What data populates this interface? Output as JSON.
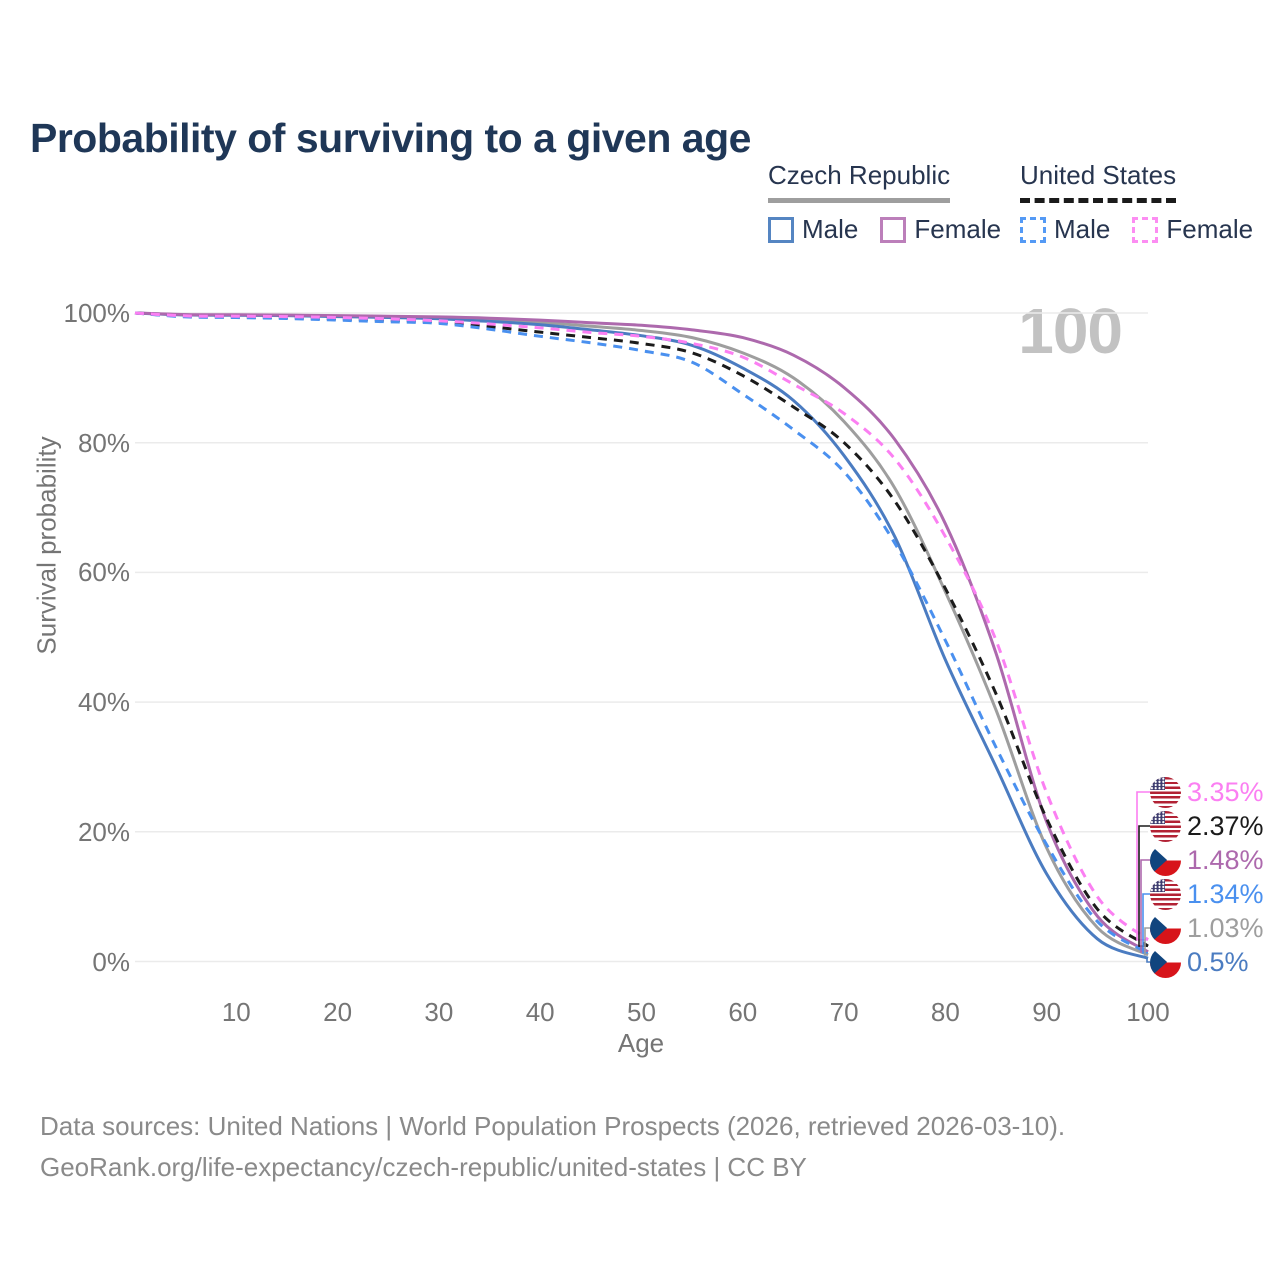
{
  "title": "Probability of surviving to a given age",
  "watermark": "100",
  "legend": {
    "groups": [
      {
        "label": "Czech Republic",
        "line_style": "solid",
        "underline_color": "#9e9e9e",
        "items": [
          {
            "label": "Male",
            "series": "cz-male",
            "color": "#5585c2"
          },
          {
            "label": "Female",
            "series": "cz-female",
            "color": "#bc7fba"
          }
        ]
      },
      {
        "label": "United States",
        "line_style": "dashed",
        "underline_color": "#1b1b1b",
        "items": [
          {
            "label": "Male",
            "series": "us-male",
            "color": "#549af5"
          },
          {
            "label": "Female",
            "series": "us-female",
            "color": "#fc8df2"
          }
        ]
      }
    ]
  },
  "chart_data": {
    "type": "line",
    "x": [
      0,
      5,
      10,
      15,
      20,
      25,
      30,
      35,
      40,
      45,
      50,
      55,
      60,
      65,
      70,
      75,
      80,
      85,
      90,
      95,
      100
    ],
    "xlabel": "Age",
    "ylabel": "Survival probability",
    "x_ticks": [
      10,
      20,
      30,
      40,
      50,
      60,
      70,
      80,
      90,
      100
    ],
    "y_ticks": [
      "0%",
      "20%",
      "40%",
      "60%",
      "80%",
      "100%"
    ],
    "xlim": [
      0,
      100
    ],
    "ylim": [
      0,
      100
    ],
    "grid": "horizontal",
    "series": [
      {
        "id": "cz-total",
        "name": "Czech Republic Total",
        "color": "#9e9e9e",
        "dash": "solid",
        "values": [
          100,
          99.73,
          99.69,
          99.64,
          99.53,
          99.4,
          99.25,
          98.95,
          98.55,
          97.95,
          97.3,
          96.2,
          93.85,
          90.0,
          83.25,
          73.0,
          57.0,
          38.75,
          17.5,
          5.25,
          1.03
        ]
      },
      {
        "id": "cz-male",
        "name": "Czech Republic Male",
        "color": "#4b7cc1",
        "dash": "solid",
        "values": [
          100,
          99.7,
          99.65,
          99.6,
          99.45,
          99.3,
          99.1,
          98.7,
          98.2,
          97.4,
          96.5,
          95.0,
          91.5,
          86.5,
          78.0,
          65.5,
          46.5,
          30.0,
          13.5,
          3.5,
          0.5
        ]
      },
      {
        "id": "cz-female",
        "name": "Czech Republic Female",
        "color": "#ad69ad",
        "dash": "solid",
        "values": [
          100,
          99.75,
          99.72,
          99.68,
          99.6,
          99.5,
          99.4,
          99.2,
          98.9,
          98.5,
          98.1,
          97.4,
          96.2,
          93.5,
          88.5,
          80.5,
          67.5,
          47.5,
          21.5,
          7.0,
          1.48
        ]
      },
      {
        "id": "us-total",
        "name": "United States Total",
        "color": "#1b1b1b",
        "dash": "dashed",
        "values": [
          100,
          99.48,
          99.4,
          99.3,
          99.1,
          98.88,
          98.6,
          97.9,
          97.05,
          96.2,
          95.3,
          93.85,
          90.35,
          85.5,
          80.0,
          71.0,
          57.5,
          41.25,
          22.0,
          8.1,
          2.37
        ]
      },
      {
        "id": "us-male",
        "name": "United States Male",
        "color": "#4a90ef",
        "dash": "dashed",
        "values": [
          100,
          99.4,
          99.3,
          99.15,
          98.9,
          98.65,
          98.4,
          97.5,
          96.4,
          95.4,
          94.2,
          92.4,
          87.5,
          82.0,
          75.5,
          64.5,
          49.5,
          33.0,
          18.0,
          6.2,
          1.34
        ]
      },
      {
        "id": "us-female",
        "name": "United States Female",
        "color": "#fb7ff2",
        "dash": "dashed",
        "values": [
          100,
          99.55,
          99.5,
          99.45,
          99.3,
          99.1,
          98.8,
          98.3,
          97.7,
          97.0,
          96.4,
          95.3,
          93.2,
          89.0,
          84.5,
          77.5,
          65.5,
          49.5,
          26.0,
          10.0,
          3.35
        ]
      }
    ],
    "end_labels": [
      {
        "series": "us-female",
        "label": "3.35%",
        "flag": "us",
        "color": "#fb7ff2"
      },
      {
        "series": "us-total",
        "label": "2.37%",
        "flag": "us",
        "color": "#1b1b1b"
      },
      {
        "series": "cz-female",
        "label": "1.48%",
        "flag": "cz",
        "color": "#ad69ad"
      },
      {
        "series": "us-male",
        "label": "1.34%",
        "flag": "us",
        "color": "#4a90ef"
      },
      {
        "series": "cz-total",
        "label": "1.03%",
        "flag": "cz",
        "color": "#9e9e9e"
      },
      {
        "series": "cz-male",
        "label": "0.5%",
        "flag": "cz",
        "color": "#4b7cc1"
      }
    ]
  },
  "footer": {
    "line1": "Data sources: United Nations | World Population Prospects (2026, retrieved 2026-03-10).",
    "line2": "GeoRank.org/life-expectancy/czech-republic/united-states | CC BY"
  }
}
